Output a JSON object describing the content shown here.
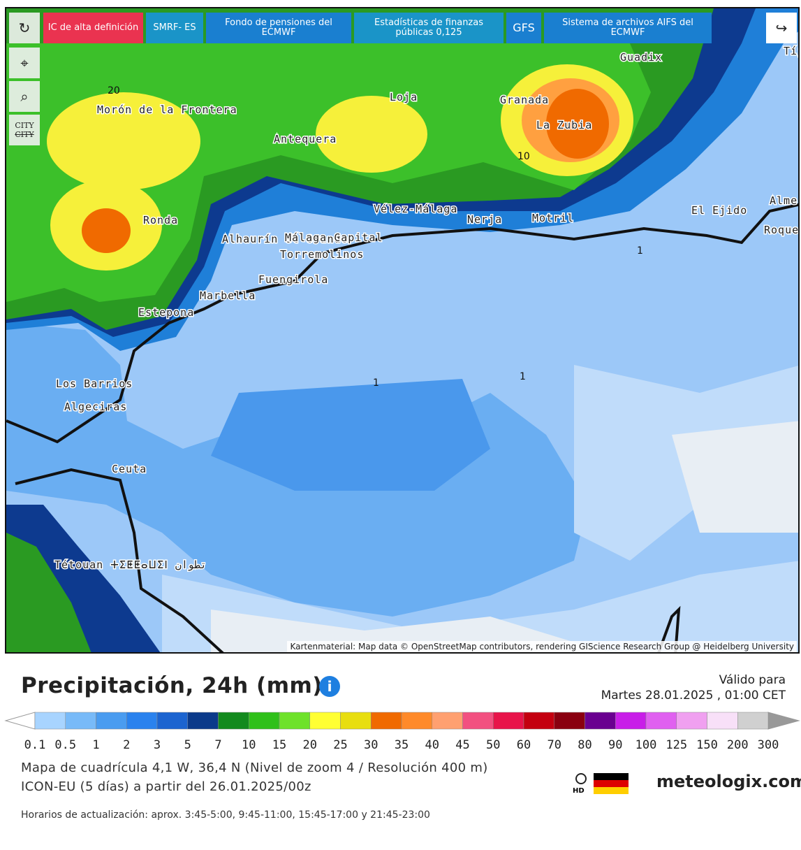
{
  "toolbar": {
    "buttons": [
      "IC de alta definición",
      "SMRF- ES",
      "Fondo de pensiones del ECMWF",
      "Estadísticas de finanzas públicas 0,125",
      "GFS",
      "Sistema de archivos AIFS del ECMWF"
    ]
  },
  "map": {
    "city_toggle": [
      "CITY",
      "CITY"
    ],
    "places": [
      "Morón de la Frontera",
      "Ronda",
      "Antequera",
      "Loja",
      "Granada",
      "La Zubia",
      "Guadix",
      "Vélez-Málaga",
      "Nerja",
      "Motril",
      "El Ejido",
      "Alhaurín el Grande",
      "Málaga Capital",
      "Torremolinos",
      "Fuengirola",
      "Marbella",
      "Estepona",
      "Los Barrios",
      "Algeciras",
      "Ceuta",
      "Tétouan ⵜⵉⵟⵟⴰⵡⵉⵏ تطوان",
      "Alme",
      "Roque de Ma",
      "Tíj"
    ],
    "contour_labels": [
      "20",
      "10",
      "1",
      "1",
      "1"
    ],
    "attribution": "Kartenmaterial: Map data © OpenStreetMap contributors, rendering GIScience Research Group @ Heidelberg University"
  },
  "legend": {
    "title": "Precipitación, 24h (mm)",
    "valid_label": "Válido para",
    "valid_date": "Martes 28.01.2025 , 01:00 CET",
    "scale": [
      "0.1",
      "0.5",
      "1",
      "2",
      "3",
      "5",
      "7",
      "10",
      "15",
      "20",
      "25",
      "30",
      "35",
      "40",
      "45",
      "50",
      "60",
      "70",
      "80",
      "90",
      "100",
      "125",
      "150",
      "200",
      "300"
    ],
    "grid_info": "Mapa de cuadrícula 4,1 W, 36,4 N (Nivel de zoom 4 / Resolución 400 m)",
    "model_info": "ICON-EU (5 días) a partir del 26.01.2025/00z",
    "hd": "HD",
    "brand": "meteologix.com"
  },
  "footer": "Horarios de actualización: aprox. 3:45-5:00, 9:45-11:00, 15:45-17:00 y 21:45-23:00"
}
